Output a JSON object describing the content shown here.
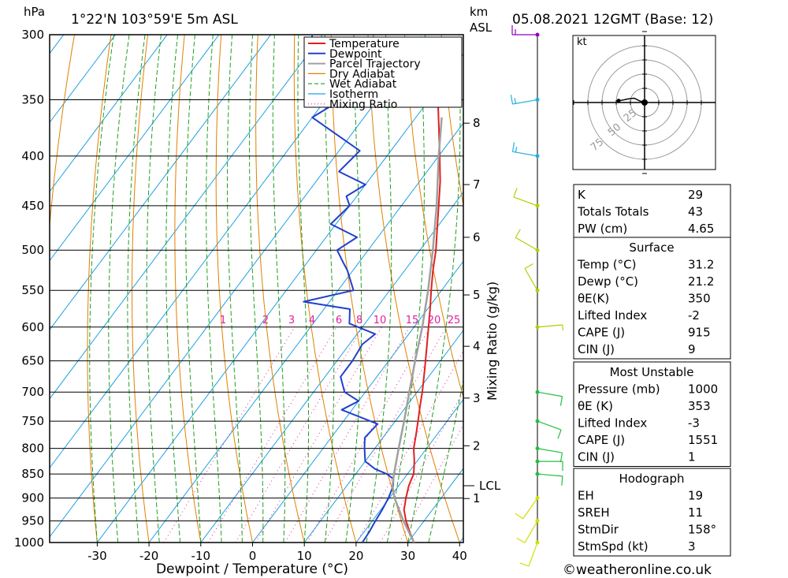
{
  "header": {
    "pressure_unit": "hPa",
    "location": "1°22'N  103°59'E  5m  ASL",
    "height_unit_1": "km",
    "height_unit_2": "ASL",
    "datetime": "05.08.2021  12GMT  (Base: 12)"
  },
  "hodograph": {
    "unit": "kt",
    "ring_labels": [
      "25",
      "50",
      "75"
    ]
  },
  "footer": {
    "copyright": "©weatheronline.co.uk"
  },
  "colors": {
    "temperature": "#e02020",
    "dewpoint": "#2040d0",
    "parcel": "#a0a0a0",
    "dry_adiabat": "#e08000",
    "wet_adiabat": "#20a020",
    "isotherm": "#20a0e0",
    "mixing_ratio": "#e020a0"
  },
  "indices": {
    "top": [
      {
        "label": "K",
        "value": "29"
      },
      {
        "label": "Totals Totals",
        "value": "43"
      },
      {
        "label": "PW (cm)",
        "value": "4.65"
      }
    ],
    "surface_title": "Surface",
    "surface": [
      {
        "label": "Temp (°C)",
        "value": "31.2"
      },
      {
        "label": "Dewp (°C)",
        "value": "21.2"
      },
      {
        "label": "θE(K)",
        "value": "350"
      },
      {
        "label": "Lifted Index",
        "value": "-2"
      },
      {
        "label": "CAPE (J)",
        "value": "915"
      },
      {
        "label": "CIN (J)",
        "value": "9"
      }
    ],
    "unstable_title": "Most Unstable",
    "unstable": [
      {
        "label": "Pressure (mb)",
        "value": "1000"
      },
      {
        "label": "θE (K)",
        "value": "353"
      },
      {
        "label": "Lifted Index",
        "value": "-3"
      },
      {
        "label": "CAPE (J)",
        "value": "1551"
      },
      {
        "label": "CIN (J)",
        "value": "1"
      }
    ],
    "hodo_title": "Hodograph",
    "hodo": [
      {
        "label": "EH",
        "value": "19"
      },
      {
        "label": "SREH",
        "value": "11"
      },
      {
        "label": "StmDir",
        "value": "158°"
      },
      {
        "label": "StmSpd (kt)",
        "value": "3"
      }
    ]
  },
  "chart_data": {
    "type": "line",
    "subtype": "skew-T log-P",
    "xlabel": "Dewpoint / Temperature (°C)",
    "ylabel_left": "hPa",
    "ylabel_mixing": "Mixing Ratio (g/kg)",
    "x_ticks": [
      -30,
      -20,
      -10,
      0,
      10,
      20,
      30,
      40
    ],
    "p_ticks": [
      300,
      350,
      400,
      450,
      500,
      550,
      600,
      650,
      700,
      750,
      800,
      850,
      900,
      950,
      1000
    ],
    "km_ticks": [
      {
        "km": 1,
        "p": 901
      },
      {
        "km": 2,
        "p": 795
      },
      {
        "km": 3,
        "p": 710
      },
      {
        "km": 4,
        "p": 628
      },
      {
        "km": 5,
        "p": 556
      },
      {
        "km": 6,
        "p": 485
      },
      {
        "km": 7,
        "p": 428
      },
      {
        "km": 8,
        "p": 370
      }
    ],
    "lcl_label": "LCL",
    "lcl_p": 874,
    "mixing_ratio_labels": [
      "1",
      "2",
      "3",
      "4",
      "6",
      "8",
      "10",
      "15",
      "20",
      "25"
    ],
    "legend": [
      "Temperature",
      "Dewpoint",
      "Parcel Trajectory",
      "Dry Adiabat",
      "Wet Adiabat",
      "Isotherm",
      "Mixing Ratio"
    ],
    "legend_position": "top-right",
    "series": [
      {
        "name": "Temperature",
        "points": [
          [
            1000,
            31.2
          ],
          [
            975,
            28.8
          ],
          [
            950,
            26.5
          ],
          [
            925,
            24.5
          ],
          [
            900,
            23.2
          ],
          [
            875,
            22.0
          ],
          [
            860,
            21.5
          ],
          [
            850,
            21.2
          ],
          [
            825,
            19.5
          ],
          [
            800,
            17.5
          ],
          [
            775,
            16.0
          ],
          [
            750,
            14.4
          ],
          [
            725,
            12.7
          ],
          [
            700,
            11.0
          ],
          [
            675,
            9.1
          ],
          [
            650,
            7.1
          ],
          [
            625,
            5.0
          ],
          [
            600,
            2.8
          ],
          [
            575,
            0.5
          ],
          [
            550,
            -2.0
          ],
          [
            525,
            -4.5
          ],
          [
            500,
            -6.9
          ],
          [
            475,
            -9.8
          ],
          [
            450,
            -12.8
          ],
          [
            425,
            -16.0
          ],
          [
            400,
            -19.8
          ],
          [
            375,
            -23.9
          ],
          [
            355,
            -27.4
          ]
        ]
      },
      {
        "name": "Dewpoint",
        "points": [
          [
            1000,
            21.2
          ],
          [
            975,
            21.0
          ],
          [
            950,
            20.6
          ],
          [
            925,
            20.3
          ],
          [
            900,
            19.8
          ],
          [
            875,
            19.0
          ],
          [
            860,
            18.0
          ],
          [
            850,
            16.0
          ],
          [
            840,
            13.0
          ],
          [
            825,
            10.0
          ],
          [
            800,
            8.0
          ],
          [
            780,
            6.5
          ],
          [
            755,
            7.0
          ],
          [
            730,
            -2.0
          ],
          [
            715,
            0.0
          ],
          [
            700,
            -4.0
          ],
          [
            675,
            -7.0
          ],
          [
            650,
            -7.0
          ],
          [
            625,
            -7.5
          ],
          [
            610,
            -6.5
          ],
          [
            595,
            -13.0
          ],
          [
            575,
            -15.0
          ],
          [
            565,
            -25.0
          ],
          [
            550,
            -17.0
          ],
          [
            525,
            -21.0
          ],
          [
            515,
            -23.0
          ],
          [
            500,
            -26.0
          ],
          [
            485,
            -24.0
          ],
          [
            470,
            -31.0
          ],
          [
            450,
            -30.0
          ],
          [
            440,
            -32.0
          ],
          [
            428,
            -30.0
          ],
          [
            415,
            -37.0
          ],
          [
            395,
            -36.0
          ],
          [
            365,
            -50.0
          ],
          [
            350,
            -47.0
          ],
          [
            340,
            -55.0
          ],
          [
            300,
            -62.0
          ]
        ]
      },
      {
        "name": "Parcel Trajectory",
        "points": [
          [
            1000,
            31.2
          ],
          [
            950,
            26.0
          ],
          [
            900,
            21.0
          ],
          [
            874,
            18.8
          ],
          [
            850,
            17.4
          ],
          [
            800,
            14.6
          ],
          [
            750,
            11.7
          ],
          [
            700,
            8.5
          ],
          [
            650,
            5.1
          ],
          [
            600,
            1.6
          ],
          [
            550,
            -2.6
          ],
          [
            500,
            -7.5
          ],
          [
            450,
            -13.2
          ],
          [
            400,
            -20.0
          ],
          [
            365,
            -25.0
          ]
        ]
      }
    ],
    "wind_barbs": [
      {
        "p": 1000,
        "dir": 200,
        "spd": 10
      },
      {
        "p": 950,
        "dir": 210,
        "spd": 10
      },
      {
        "p": 900,
        "dir": 215,
        "spd": 10
      },
      {
        "p": 850,
        "dir": 95,
        "spd": 10
      },
      {
        "p": 825,
        "dir": 90,
        "spd": 10
      },
      {
        "p": 800,
        "dir": 100,
        "spd": 10
      },
      {
        "p": 750,
        "dir": 110,
        "spd": 10
      },
      {
        "p": 700,
        "dir": 100,
        "spd": 10
      },
      {
        "p": 600,
        "dir": 85,
        "spd": 5
      },
      {
        "p": 550,
        "dir": 330,
        "spd": 10
      },
      {
        "p": 500,
        "dir": 300,
        "spd": 10
      },
      {
        "p": 450,
        "dir": 290,
        "spd": 10
      },
      {
        "p": 400,
        "dir": 280,
        "spd": 15
      },
      {
        "p": 350,
        "dir": 260,
        "spd": 15
      },
      {
        "p": 300,
        "dir": 270,
        "spd": 15
      }
    ],
    "hodograph_points": [
      [
        -15,
        1
      ],
      [
        -12,
        1.5
      ],
      [
        -10,
        2
      ],
      [
        -6,
        2.5
      ],
      [
        -3,
        1
      ],
      [
        0,
        0
      ]
    ]
  }
}
